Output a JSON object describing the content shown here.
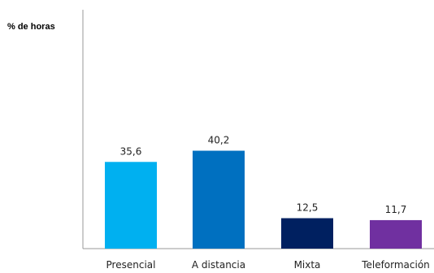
{
  "chart_data": {
    "type": "bar",
    "title": "",
    "xlabel": "",
    "ylabel": "% de horas",
    "categories": [
      "Presencial",
      "A distancia",
      "Mixta",
      "Teleformación"
    ],
    "values": [
      35.6,
      40.2,
      12.5,
      11.7
    ],
    "value_labels": [
      "35,6",
      "40,2",
      "12,5",
      "11,7"
    ],
    "ylim": [
      0,
      100
    ],
    "grid": false,
    "legend": "none",
    "colors": [
      "#00B0F0",
      "#0070C0",
      "#002060",
      "#7030A0"
    ]
  }
}
